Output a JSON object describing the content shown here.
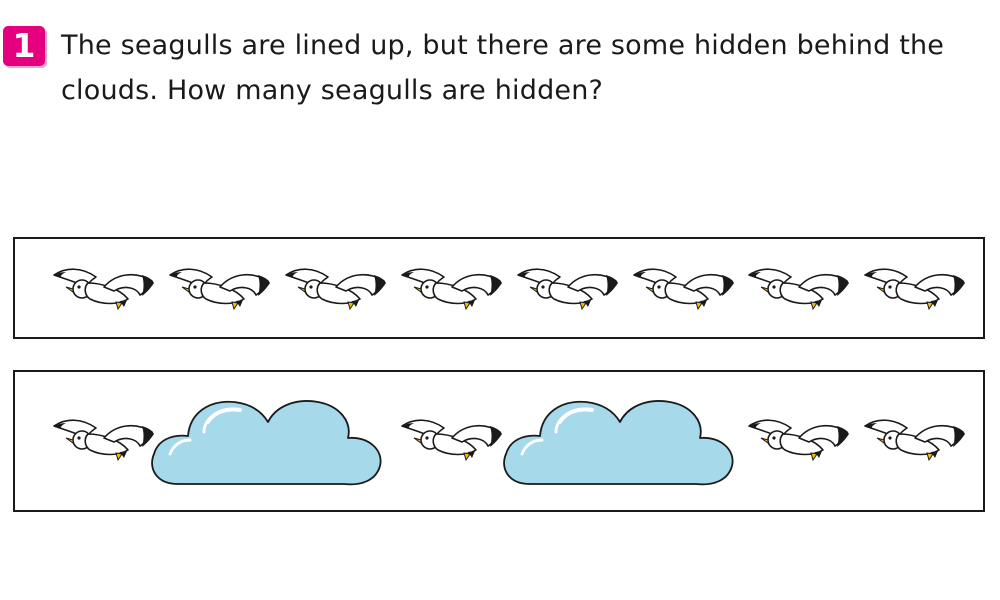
{
  "question": {
    "number": "1",
    "text": "The seagulls are lined up, but there are some hidden behind the clouds. How many seagulls are hidden?"
  },
  "rows": [
    {
      "name": "full-row",
      "items": [
        "seagull",
        "seagull",
        "seagull",
        "seagull",
        "seagull",
        "seagull",
        "seagull",
        "seagull"
      ]
    },
    {
      "name": "hidden-row",
      "items": [
        "seagull",
        "cloud",
        "seagull",
        "cloud",
        "seagull",
        "seagull"
      ]
    }
  ],
  "colors": {
    "badge": "#e4007f",
    "cloud_fill": "#a6d9ea",
    "cloud_highlight": "#ffffff",
    "outline": "#1a1a1a",
    "beak": "#f2c200"
  },
  "icons": {
    "seagull": "seagull-icon",
    "cloud": "cloud-icon"
  }
}
